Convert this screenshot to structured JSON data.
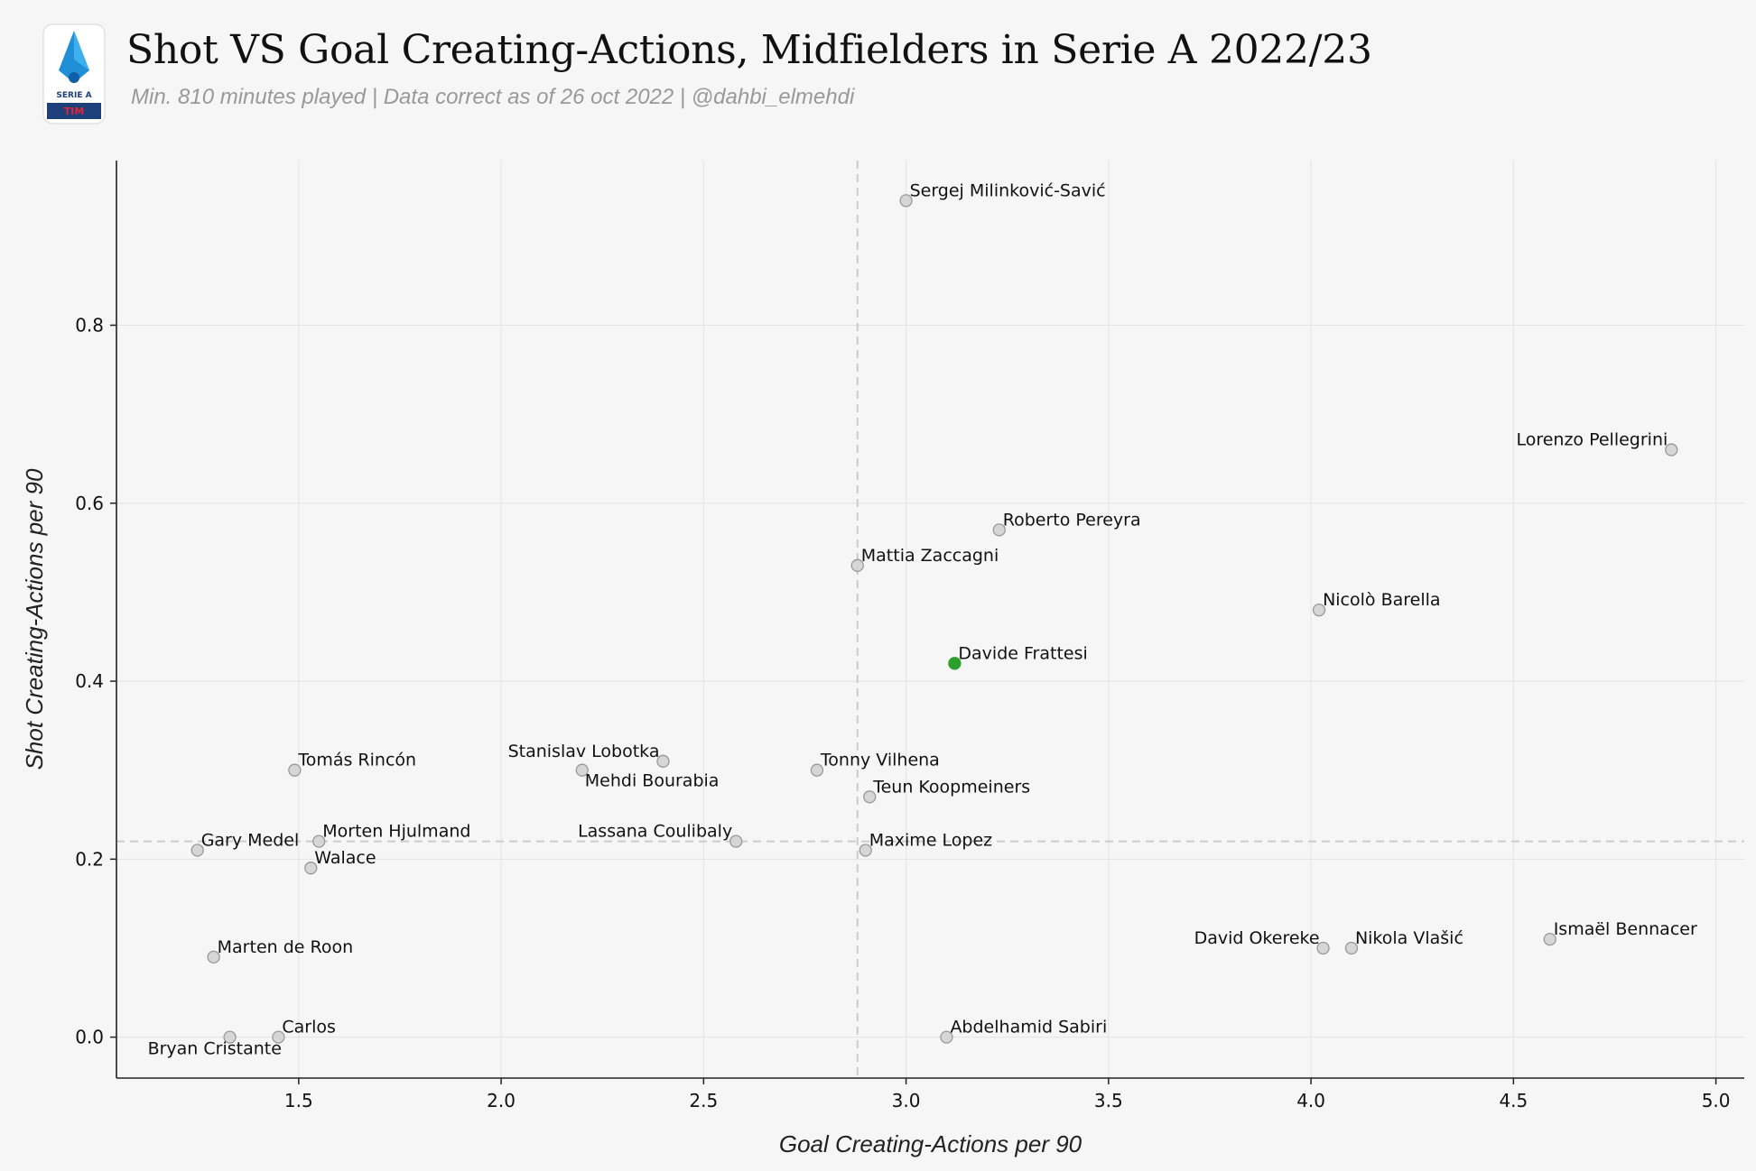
{
  "header": {
    "title": "Shot VS Goal Creating-Actions, Midfielders in Serie A 2022/23",
    "subtitle": "Min. 810 minutes played | Data correct as of 26 oct 2022 | @dahbi_elmehdi",
    "logo_text_top": "SERIE A",
    "logo_text_bottom": "TIM"
  },
  "colors": {
    "background": "#f6f6f6",
    "point": "#d3d3d3",
    "point_edge": "#999999",
    "highlight": "#2ca02c",
    "grid": "#e4e4e4",
    "average_line": "#cccccc"
  },
  "chart_data": {
    "type": "scatter",
    "xlabel": "Goal Creating-Actions per 90",
    "ylabel": "Shot Creating-Actions per 90",
    "xlim": [
      1.05,
      5.07
    ],
    "ylim": [
      -0.046,
      0.985
    ],
    "xticks": [
      1.5,
      2.0,
      2.5,
      3.0,
      3.5,
      4.0,
      4.5,
      5.0
    ],
    "xtick_labels": [
      "1.5",
      "2.0",
      "2.5",
      "3.0",
      "3.5",
      "4.0",
      "4.5",
      "5.0"
    ],
    "yticks": [
      0.0,
      0.2,
      0.4,
      0.6,
      0.8
    ],
    "ytick_labels": [
      "0.0",
      "0.2",
      "0.4",
      "0.6",
      "0.8"
    ],
    "grid": true,
    "reference_lines": {
      "x": 2.88,
      "y": 0.22
    },
    "highlight": "Davide Frattesi",
    "points": [
      {
        "name": "Sergej Milinković-Savić",
        "x": 3.0,
        "y": 0.94,
        "label_pos": "right"
      },
      {
        "name": "Lorenzo Pellegrini",
        "x": 4.89,
        "y": 0.66,
        "label_pos": "left"
      },
      {
        "name": "Roberto Pereyra",
        "x": 3.23,
        "y": 0.57,
        "label_pos": "right"
      },
      {
        "name": "Mattia Zaccagni",
        "x": 2.88,
        "y": 0.53,
        "label_pos": "right"
      },
      {
        "name": "Nicolò Barella",
        "x": 4.02,
        "y": 0.48,
        "label_pos": "right"
      },
      {
        "name": "Davide Frattesi",
        "x": 3.12,
        "y": 0.42,
        "label_pos": "right"
      },
      {
        "name": "Stanislav Lobotka",
        "x": 2.4,
        "y": 0.31,
        "label_pos": "left"
      },
      {
        "name": "Tomás Rincón",
        "x": 1.49,
        "y": 0.3,
        "label_pos": "right"
      },
      {
        "name": "Mehdi Bourabia",
        "x": 2.2,
        "y": 0.3,
        "label_pos": "below-right"
      },
      {
        "name": "Tonny Vilhena",
        "x": 2.78,
        "y": 0.3,
        "label_pos": "right"
      },
      {
        "name": "Teun Koopmeiners",
        "x": 2.91,
        "y": 0.27,
        "label_pos": "right"
      },
      {
        "name": "Morten Hjulmand",
        "x": 1.55,
        "y": 0.22,
        "label_pos": "right"
      },
      {
        "name": "Lassana Coulibaly",
        "x": 2.58,
        "y": 0.22,
        "label_pos": "left"
      },
      {
        "name": "Gary Medel",
        "x": 1.25,
        "y": 0.21,
        "label_pos": "right"
      },
      {
        "name": "Maxime Lopez",
        "x": 2.9,
        "y": 0.21,
        "label_pos": "right"
      },
      {
        "name": "Walace",
        "x": 1.53,
        "y": 0.19,
        "label_pos": "right"
      },
      {
        "name": "Ismaël Bennacer",
        "x": 4.59,
        "y": 0.11,
        "label_pos": "right"
      },
      {
        "name": "David Okereke",
        "x": 4.03,
        "y": 0.1,
        "label_pos": "left"
      },
      {
        "name": "Nikola Vlašić",
        "x": 4.1,
        "y": 0.1,
        "label_pos": "right"
      },
      {
        "name": "Marten de Roon",
        "x": 1.29,
        "y": 0.09,
        "label_pos": "right"
      },
      {
        "name": "Carlos",
        "x": 1.45,
        "y": 0.0,
        "label_pos": "right"
      },
      {
        "name": "Bryan Cristante",
        "x": 1.33,
        "y": 0.0,
        "label_pos": "below"
      },
      {
        "name": "Abdelhamid Sabiri",
        "x": 3.1,
        "y": 0.0,
        "label_pos": "right"
      }
    ]
  }
}
